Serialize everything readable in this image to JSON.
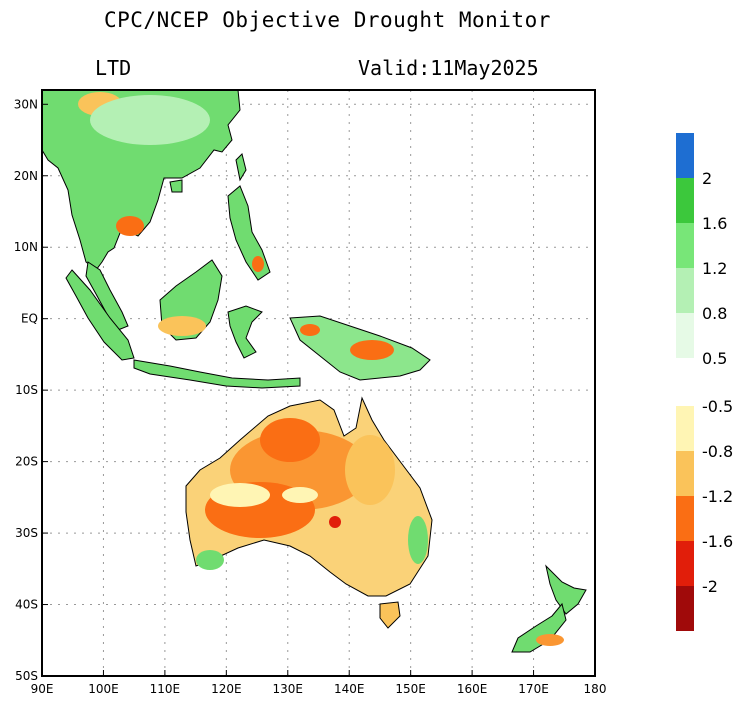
{
  "title": "CPC/NCEP Objective Drought Monitor",
  "subtitle_left": "LTD",
  "subtitle_right": "Valid:11May2025",
  "map": {
    "lon_range": [
      90,
      180
    ],
    "lat_range": [
      -50,
      32
    ],
    "lon_ticks": [
      "90E",
      "100E",
      "110E",
      "120E",
      "130E",
      "140E",
      "150E",
      "160E",
      "170E",
      "180"
    ],
    "lat_ticks": [
      "50S",
      "40S",
      "30S",
      "20S",
      "10S",
      "EQ",
      "10N",
      "20N",
      "30N"
    ],
    "grid": true
  },
  "colorbar_wet": {
    "colors": [
      "#e6fae6",
      "#b4f0b4",
      "#78e678",
      "#3cc83c",
      "#1e6ed2"
    ],
    "labels": [
      "0.5",
      "0.8",
      "1.2",
      "1.6",
      "2"
    ]
  },
  "colorbar_dry": {
    "colors": [
      "#fff5b4",
      "#fac35a",
      "#fa6e14",
      "#e11e0a",
      "#a00a0a"
    ],
    "labels": [
      "-0.5",
      "-0.8",
      "-1.2",
      "-1.6",
      "-2"
    ]
  }
}
